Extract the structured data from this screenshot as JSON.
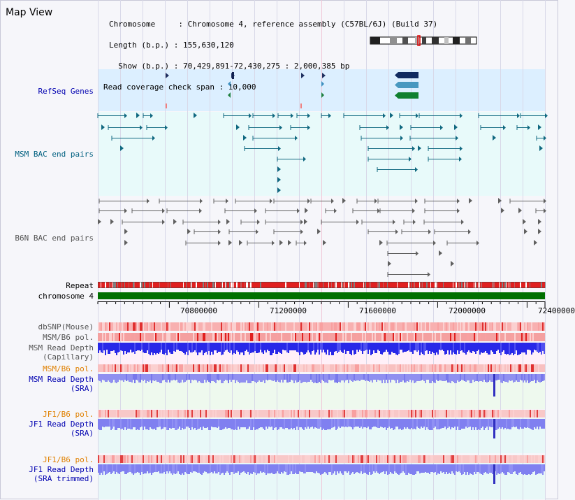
{
  "title": "Map View",
  "header": {
    "line1": "Chromosome     : Chromosome 4, reference assembly (C57BL/6J) (Build 37)",
    "line2": "Length (b.p.) : 155,630,120",
    "line3": "  Show (b.p.) : 70,429,891-72,430,275 : 2,000,385 bp",
    "line4": "Read coverage check span : 10,000"
  },
  "tracks": {
    "refseq": "RefSeq Genes",
    "msm_bac": "MSM BAC end pairs",
    "b6n_bac": "B6N BAC end pairs",
    "repeat": "Repeat",
    "chromosome": "chromosome 4",
    "dbsnp": "dbSNP(Mouse)",
    "msm_b6_pol": "MSM/B6 pol.",
    "msm_depth_cap_1": "MSM Read Depth",
    "msm_depth_cap_2": "(Capillary)",
    "msm_b6_pol_2": "MSM/B6 pol.",
    "msm_depth_sra_1": "MSM Read Depth",
    "msm_depth_sra_2": "(SRA)",
    "jf1_b6_pol": "JF1/B6 pol.",
    "jf1_depth_sra_1": "JF1 Read Depth",
    "jf1_depth_sra_2": "(SRA)",
    "jf1_b6_pol_2": "JF1/B6 pol.",
    "jf1_depth_trim_1": "JF1 Read Depth",
    "jf1_depth_trim_2": "(SRA trimmed)"
  },
  "axis": {
    "ticks": [
      "70800000",
      "71200000",
      "71600000",
      "72000000",
      "72400000"
    ]
  },
  "colors": {
    "refseq_bg": "#dcefff",
    "msm_bg": "#e8fafa",
    "repeat_red": "#e02020",
    "chromosome_green": "#007000",
    "depth_blue": "#2020e0",
    "depth_light_blue": "#8080f0",
    "pol_red": "#f08080"
  }
}
